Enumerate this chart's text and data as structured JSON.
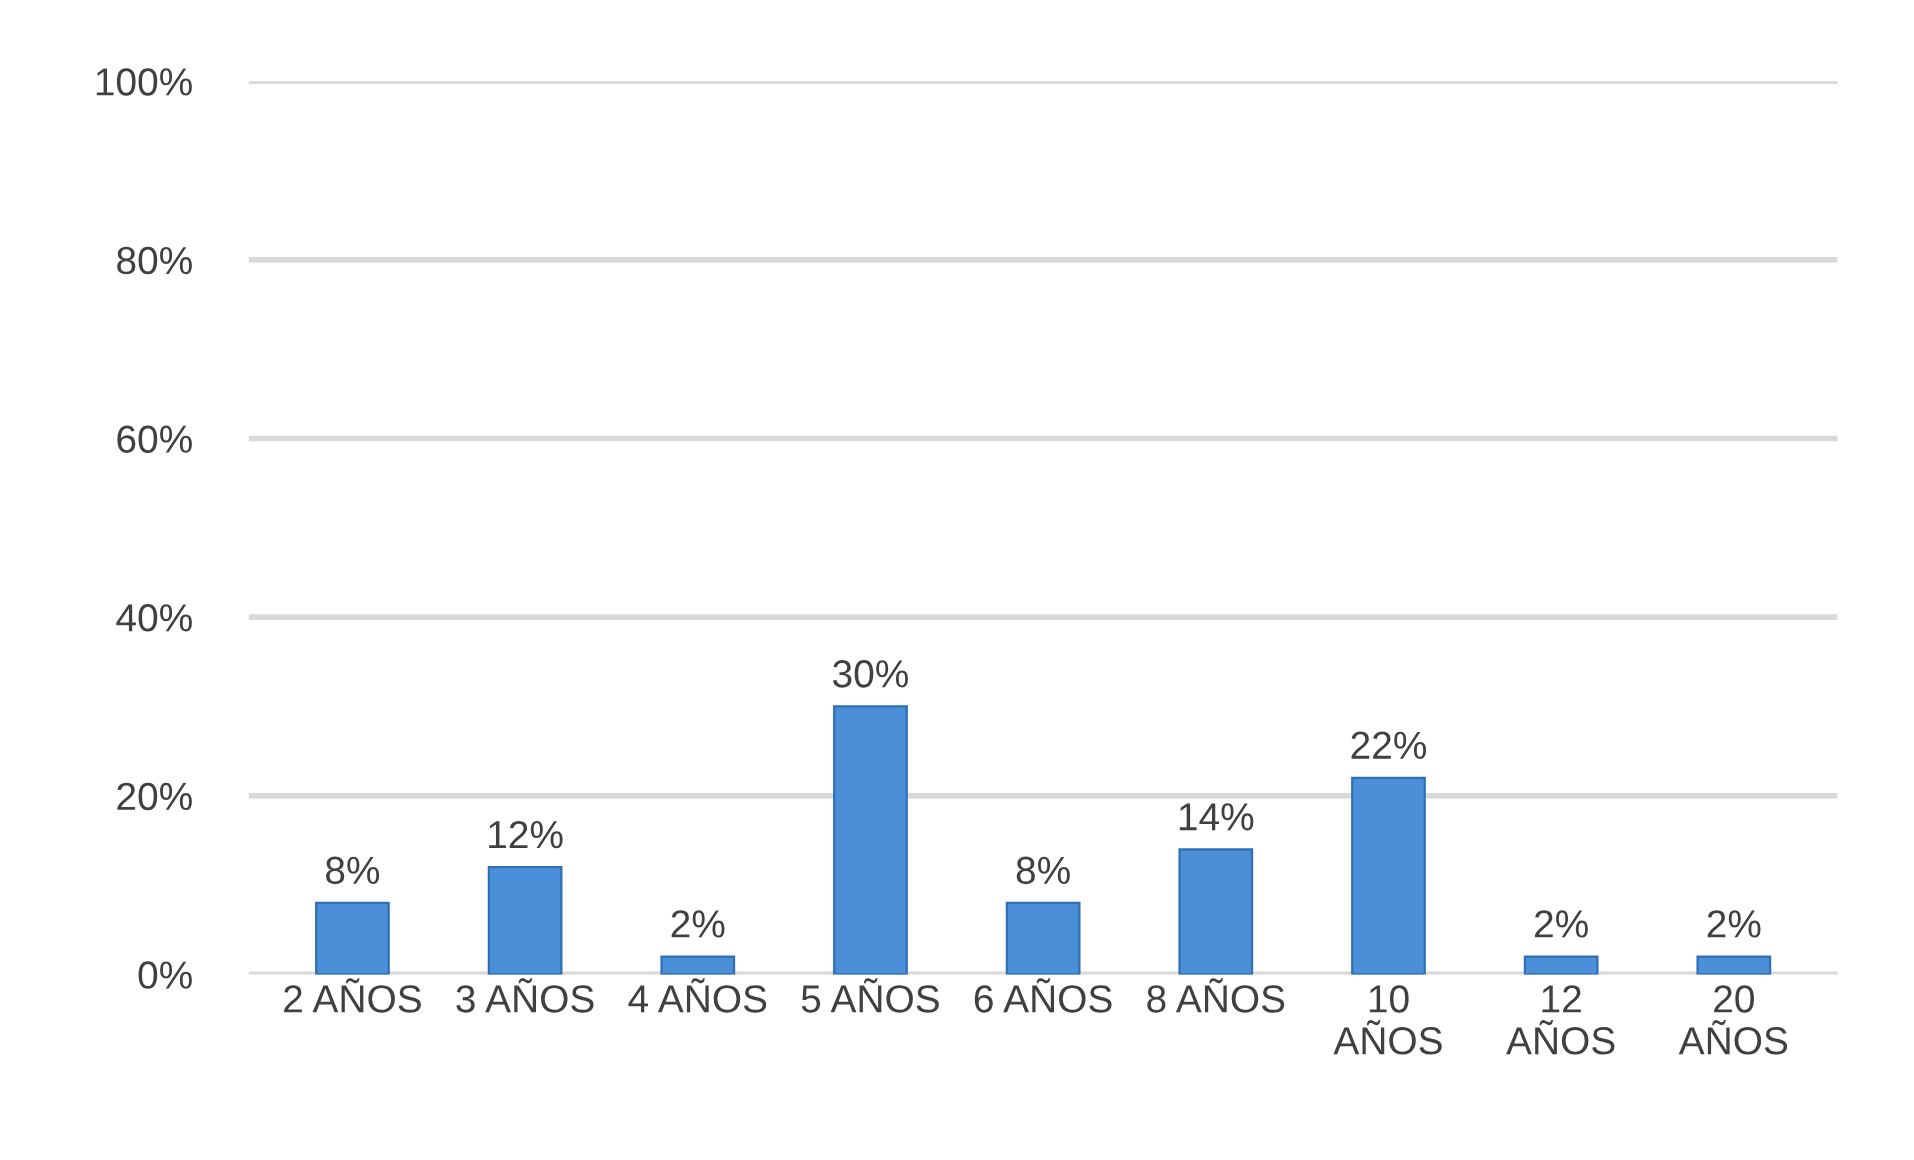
{
  "chart_data": {
    "type": "bar",
    "categories": [
      "2 AÑOS",
      "3 AÑOS",
      "4 AÑOS",
      "5 AÑOS",
      "6 AÑOS",
      "8 AÑOS",
      "10\nAÑOS",
      "12\nAÑOS",
      "20\nAÑOS"
    ],
    "values": [
      8,
      12,
      2,
      30,
      8,
      14,
      22,
      2,
      2
    ],
    "value_labels": [
      "8%",
      "12%",
      "2%",
      "30%",
      "8%",
      "14%",
      "22%",
      "2%",
      "2%"
    ],
    "color": "#4a8fd8",
    "ylim": [
      0,
      100
    ],
    "yticks": [
      {
        "value": 0,
        "label": "0%"
      },
      {
        "value": 20,
        "label": "20%"
      },
      {
        "value": 40,
        "label": "40%"
      },
      {
        "value": 60,
        "label": "60%"
      },
      {
        "value": 80,
        "label": "80%"
      },
      {
        "value": 100,
        "label": "100%"
      }
    ],
    "grid": "y"
  }
}
